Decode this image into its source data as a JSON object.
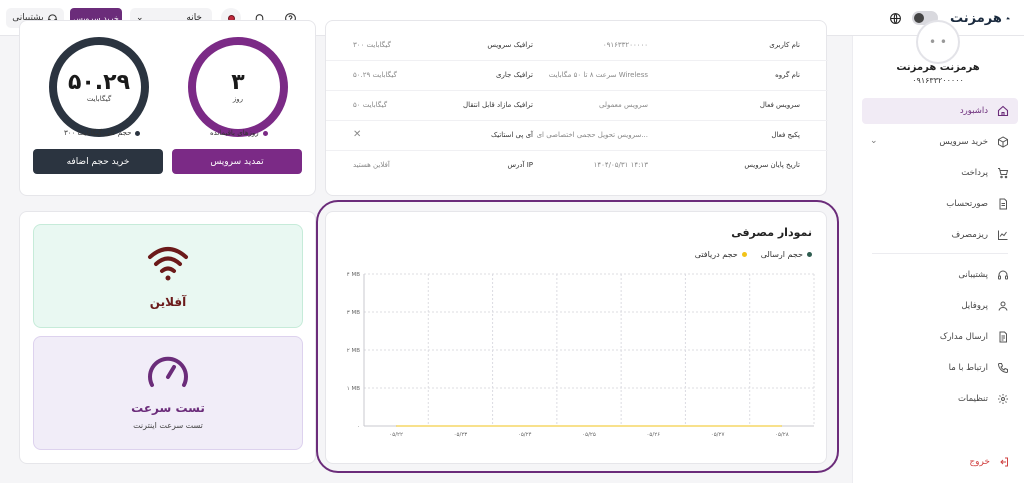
{
  "topbar": {
    "support_label": "پشتیبانی",
    "buy_service_label": "خرید سرویس",
    "home_select_value": "خانه",
    "logo_text": "هرمزنت"
  },
  "sidebar": {
    "user_name": "هرمزنت هرمزنت",
    "user_phone": "۰۹۱۶۳۳۲۰۰۰۰۰",
    "items": [
      {
        "label": "داشبورد",
        "icon": "home-icon",
        "active": true
      },
      {
        "label": "خرید سرویس",
        "icon": "cube-icon",
        "active": false
      },
      {
        "label": "پرداخت",
        "icon": "cart-icon",
        "active": false
      },
      {
        "label": "صورتحساب",
        "icon": "invoice-icon",
        "active": false
      },
      {
        "label": "ریزمصرف",
        "icon": "chart-icon",
        "active": false
      },
      {
        "label": "پشتیبانی",
        "icon": "headset-icon",
        "active": false
      },
      {
        "label": "پروفایل",
        "icon": "user-icon",
        "active": false
      },
      {
        "label": "ارسال مدارک",
        "icon": "document-icon",
        "active": false
      },
      {
        "label": "ارتباط با ما",
        "icon": "phone-icon",
        "active": false
      },
      {
        "label": "تنظیمات",
        "icon": "gear-icon",
        "active": false
      }
    ],
    "logout_label": "خروج"
  },
  "usage": {
    "data_value": "۵۰.۲۹",
    "data_unit": "گیگابایت",
    "days_value": "۳",
    "days_unit": "روز",
    "legend_total": "حجم کلی:گیگابایت ۳۰۰",
    "legend_days": "روزهای باقیمانده",
    "extra_button": "خرید حجم اضافه",
    "renew_button": "تمدید سرویس",
    "colors": {
      "data_ring": "#2b3440",
      "days_ring": "#7b2a86"
    }
  },
  "info": {
    "rows": [
      {
        "label_r": "نام کاربری",
        "value_r": "۰۹۱۶۳۳۲۰۰۰۰۰",
        "label_l": "ترافیک سرویس",
        "value_l": "۳۰۰ گیگابایت"
      },
      {
        "label_r": "نام گروه",
        "value_r": "سرعت ۸ تا ۵۰ مگابایت Wireless",
        "label_l": "ترافیک جاری",
        "value_l": "۵۰.۲۹ گیگابایت"
      },
      {
        "label_r": "سرویس فعال",
        "value_r": "سرویس معمولی",
        "label_l": "ترافیک مازاد قابل انتقال",
        "value_l": "۵۰ گیگابایت"
      },
      {
        "label_r": "پکیج فعال",
        "value_r": "سرویس تحویل حجمی اختصاصی ای...",
        "label_l": "آی پی استاتیک",
        "value_l": "✕"
      },
      {
        "label_r": "تاریخ پایان سرویس",
        "value_r": "۱۴۰۴/۰۵/۳۱ ۱۴:۱۳",
        "label_l": "آدرس IP",
        "value_l": "آفلاین هستید"
      }
    ]
  },
  "status": {
    "offline_title": "آفلاین",
    "speed_title": "تست سرعت",
    "speed_sub": "تست سرعت اینترنت"
  },
  "chart": {
    "title": "نمودار مصرفی",
    "legend_sent": "حجم ارسالی",
    "legend_received": "حجم دریافتی"
  },
  "chart_data": {
    "type": "line",
    "title": "نمودار مصرفی",
    "x": [
      "۰۵/۲۲",
      "۰۵/۲۳",
      "۰۵/۲۴",
      "۰۵/۲۵",
      "۰۵/۲۶",
      "۰۵/۲۷",
      "۰۵/۲۸"
    ],
    "y_ticks": [
      "۰",
      "۱ MB",
      "۲ MB",
      "۳ MB",
      "۴ MB"
    ],
    "ylim": [
      0,
      4
    ],
    "grid": true,
    "legend_position": "top-right",
    "series": [
      {
        "name": "حجم ارسالی",
        "color": "#2f5d50",
        "values": [
          0,
          0,
          0,
          0,
          0,
          0,
          0
        ]
      },
      {
        "name": "حجم دریافتی",
        "color": "#f2c318",
        "values": [
          0,
          0,
          0,
          0,
          0,
          0,
          0
        ]
      }
    ]
  }
}
